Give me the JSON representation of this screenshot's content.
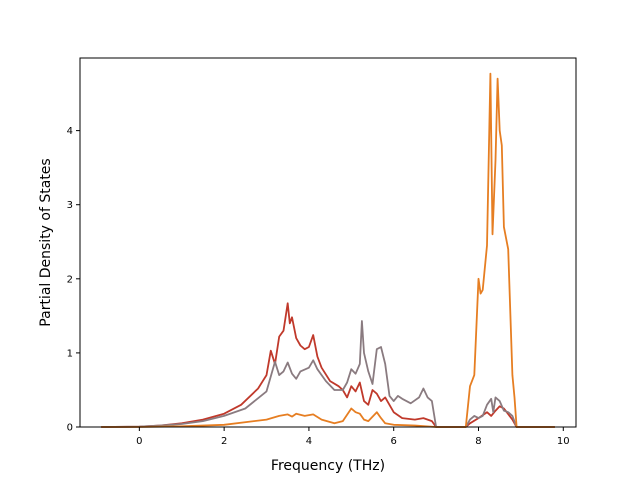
{
  "chart_data": {
    "type": "line",
    "title": "",
    "xlabel": "Frequency (THz)",
    "ylabel": "Partial Density of States",
    "xlim": [
      -1.4,
      10.3
    ],
    "ylim": [
      0,
      4.98
    ],
    "xticks": [
      0,
      2,
      4,
      6,
      8,
      10
    ],
    "yticks": [
      0,
      1,
      2,
      3,
      4
    ],
    "grid": false,
    "legend": "none",
    "series": [
      {
        "color": "#c0392b",
        "points": [
          [
            -0.9,
            0
          ],
          [
            0,
            0.005
          ],
          [
            0.5,
            0.02
          ],
          [
            1.0,
            0.05
          ],
          [
            1.5,
            0.1
          ],
          [
            2.0,
            0.18
          ],
          [
            2.4,
            0.3
          ],
          [
            2.8,
            0.52
          ],
          [
            3.0,
            0.7
          ],
          [
            3.1,
            1.03
          ],
          [
            3.2,
            0.85
          ],
          [
            3.3,
            1.22
          ],
          [
            3.4,
            1.3
          ],
          [
            3.5,
            1.67
          ],
          [
            3.55,
            1.4
          ],
          [
            3.6,
            1.48
          ],
          [
            3.7,
            1.2
          ],
          [
            3.8,
            1.1
          ],
          [
            3.9,
            1.05
          ],
          [
            4.0,
            1.08
          ],
          [
            4.1,
            1.24
          ],
          [
            4.2,
            0.95
          ],
          [
            4.3,
            0.8
          ],
          [
            4.5,
            0.62
          ],
          [
            4.7,
            0.55
          ],
          [
            4.8,
            0.5
          ],
          [
            4.9,
            0.4
          ],
          [
            5.0,
            0.55
          ],
          [
            5.1,
            0.48
          ],
          [
            5.2,
            0.6
          ],
          [
            5.3,
            0.35
          ],
          [
            5.4,
            0.3
          ],
          [
            5.5,
            0.5
          ],
          [
            5.6,
            0.45
          ],
          [
            5.7,
            0.35
          ],
          [
            5.8,
            0.4
          ],
          [
            6.0,
            0.2
          ],
          [
            6.2,
            0.12
          ],
          [
            6.5,
            0.1
          ],
          [
            6.7,
            0.12
          ],
          [
            6.9,
            0.08
          ],
          [
            7.0,
            0
          ],
          [
            7.7,
            0
          ],
          [
            7.8,
            0.05
          ],
          [
            8.0,
            0.12
          ],
          [
            8.2,
            0.2
          ],
          [
            8.3,
            0.15
          ],
          [
            8.4,
            0.22
          ],
          [
            8.5,
            0.28
          ],
          [
            8.6,
            0.25
          ],
          [
            8.8,
            0.1
          ],
          [
            8.9,
            0
          ],
          [
            9.8,
            0
          ]
        ]
      },
      {
        "color": "#8a7b80",
        "points": [
          [
            -0.9,
            0
          ],
          [
            0,
            0.005
          ],
          [
            0.5,
            0.02
          ],
          [
            1.0,
            0.04
          ],
          [
            1.5,
            0.08
          ],
          [
            2.0,
            0.15
          ],
          [
            2.5,
            0.25
          ],
          [
            3.0,
            0.48
          ],
          [
            3.2,
            0.88
          ],
          [
            3.3,
            0.7
          ],
          [
            3.4,
            0.75
          ],
          [
            3.5,
            0.87
          ],
          [
            3.6,
            0.72
          ],
          [
            3.7,
            0.65
          ],
          [
            3.8,
            0.75
          ],
          [
            4.0,
            0.8
          ],
          [
            4.1,
            0.9
          ],
          [
            4.2,
            0.78
          ],
          [
            4.4,
            0.62
          ],
          [
            4.6,
            0.5
          ],
          [
            4.8,
            0.5
          ],
          [
            4.9,
            0.6
          ],
          [
            5.0,
            0.78
          ],
          [
            5.1,
            0.72
          ],
          [
            5.2,
            0.85
          ],
          [
            5.25,
            1.43
          ],
          [
            5.3,
            1.0
          ],
          [
            5.4,
            0.75
          ],
          [
            5.5,
            0.58
          ],
          [
            5.6,
            1.05
          ],
          [
            5.7,
            1.08
          ],
          [
            5.8,
            0.85
          ],
          [
            5.9,
            0.42
          ],
          [
            6.0,
            0.35
          ],
          [
            6.1,
            0.42
          ],
          [
            6.2,
            0.38
          ],
          [
            6.4,
            0.32
          ],
          [
            6.6,
            0.4
          ],
          [
            6.7,
            0.52
          ],
          [
            6.8,
            0.4
          ],
          [
            6.9,
            0.35
          ],
          [
            7.0,
            0
          ],
          [
            7.7,
            0
          ],
          [
            7.8,
            0.1
          ],
          [
            7.9,
            0.15
          ],
          [
            8.0,
            0.12
          ],
          [
            8.1,
            0.15
          ],
          [
            8.2,
            0.3
          ],
          [
            8.3,
            0.38
          ],
          [
            8.35,
            0.2
          ],
          [
            8.4,
            0.4
          ],
          [
            8.5,
            0.35
          ],
          [
            8.6,
            0.22
          ],
          [
            8.7,
            0.2
          ],
          [
            8.8,
            0.15
          ],
          [
            8.9,
            0
          ],
          [
            9.8,
            0
          ]
        ]
      },
      {
        "color": "#e67e22",
        "points": [
          [
            -0.9,
            0
          ],
          [
            0,
            0
          ],
          [
            1.0,
            0.01
          ],
          [
            2.0,
            0.03
          ],
          [
            3.0,
            0.1
          ],
          [
            3.3,
            0.15
          ],
          [
            3.5,
            0.17
          ],
          [
            3.6,
            0.14
          ],
          [
            3.7,
            0.18
          ],
          [
            3.9,
            0.15
          ],
          [
            4.1,
            0.17
          ],
          [
            4.3,
            0.1
          ],
          [
            4.6,
            0.05
          ],
          [
            4.8,
            0.08
          ],
          [
            5.0,
            0.25
          ],
          [
            5.1,
            0.2
          ],
          [
            5.2,
            0.18
          ],
          [
            5.3,
            0.1
          ],
          [
            5.4,
            0.08
          ],
          [
            5.6,
            0.2
          ],
          [
            5.7,
            0.12
          ],
          [
            5.8,
            0.05
          ],
          [
            6.0,
            0.03
          ],
          [
            6.5,
            0.02
          ],
          [
            7.0,
            0
          ],
          [
            7.7,
            0
          ],
          [
            7.8,
            0.55
          ],
          [
            7.9,
            0.7
          ],
          [
            8.0,
            2.0
          ],
          [
            8.05,
            1.8
          ],
          [
            8.1,
            1.85
          ],
          [
            8.2,
            2.45
          ],
          [
            8.28,
            4.77
          ],
          [
            8.33,
            2.6
          ],
          [
            8.4,
            3.6
          ],
          [
            8.45,
            4.7
          ],
          [
            8.5,
            4.0
          ],
          [
            8.55,
            3.8
          ],
          [
            8.6,
            2.7
          ],
          [
            8.7,
            2.4
          ],
          [
            8.8,
            0.7
          ],
          [
            8.85,
            0.4
          ],
          [
            8.9,
            0
          ],
          [
            9.8,
            0
          ]
        ]
      }
    ]
  }
}
